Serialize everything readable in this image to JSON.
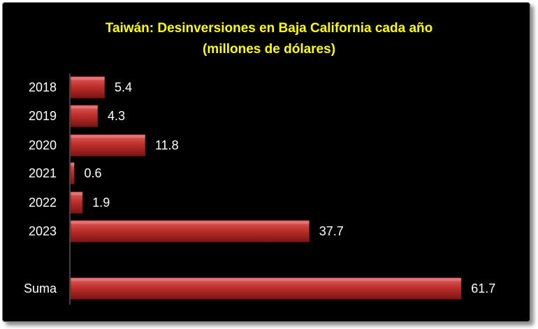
{
  "chart_data": {
    "type": "bar",
    "orientation": "horizontal",
    "title": [
      "Taiwán: Desinversiones en Baja California cada año",
      "(millones de dólares)"
    ],
    "categories": [
      "2018",
      "2019",
      "2020",
      "2021",
      "2022",
      "2023",
      "Suma"
    ],
    "values": [
      5.4,
      4.3,
      11.8,
      0.6,
      1.9,
      37.7,
      61.7
    ],
    "value_labels": [
      "5.4",
      "4.3",
      "11.8",
      "0.6",
      "1.9",
      "37.7",
      "61.7"
    ],
    "xlim": [
      0,
      62
    ],
    "xlabel": "",
    "ylabel": "",
    "grid": false,
    "legend": "none",
    "colors": {
      "background": "#000000",
      "bar_top": "#e06060",
      "bar_mid": "#c0302c",
      "bar_bottom": "#7a1512",
      "text": "#ffffff",
      "title": "#ffff00",
      "axis": "#808080"
    }
  }
}
